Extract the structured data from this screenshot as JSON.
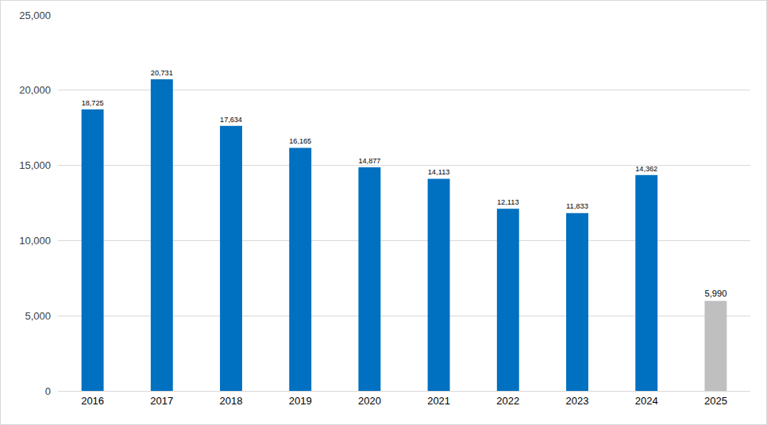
{
  "chart_data": {
    "type": "bar",
    "categories": [
      "2016",
      "2017",
      "2018",
      "2019",
      "2020",
      "2021",
      "2022",
      "2023",
      "2024",
      "2025"
    ],
    "values": [
      18725,
      20731,
      17634,
      16165,
      14877,
      14113,
      12113,
      11833,
      14362,
      5990
    ],
    "value_labels": [
      "18,725",
      "20,731",
      "17,634",
      "16,165",
      "14,877",
      "14,113",
      "12,113",
      "11,833",
      "14,362",
      "5,990"
    ],
    "colors": [
      "#0070c0",
      "#0070c0",
      "#0070c0",
      "#0070c0",
      "#0070c0",
      "#0070c0",
      "#0070c0",
      "#0070c0",
      "#0070c0",
      "#bfbfbf"
    ],
    "ylim": [
      0,
      25000
    ],
    "yticks": [
      0,
      {
        "value": 5000,
        "label": "5,000"
      },
      {
        "value": 10000,
        "label": "10,000"
      },
      {
        "value": 15000,
        "label": "15,000"
      },
      {
        "value": 20000,
        "label": "20,000"
      },
      {
        "value": 25000,
        "label": "25,000"
      }
    ],
    "grid": true,
    "data_labels": true
  }
}
